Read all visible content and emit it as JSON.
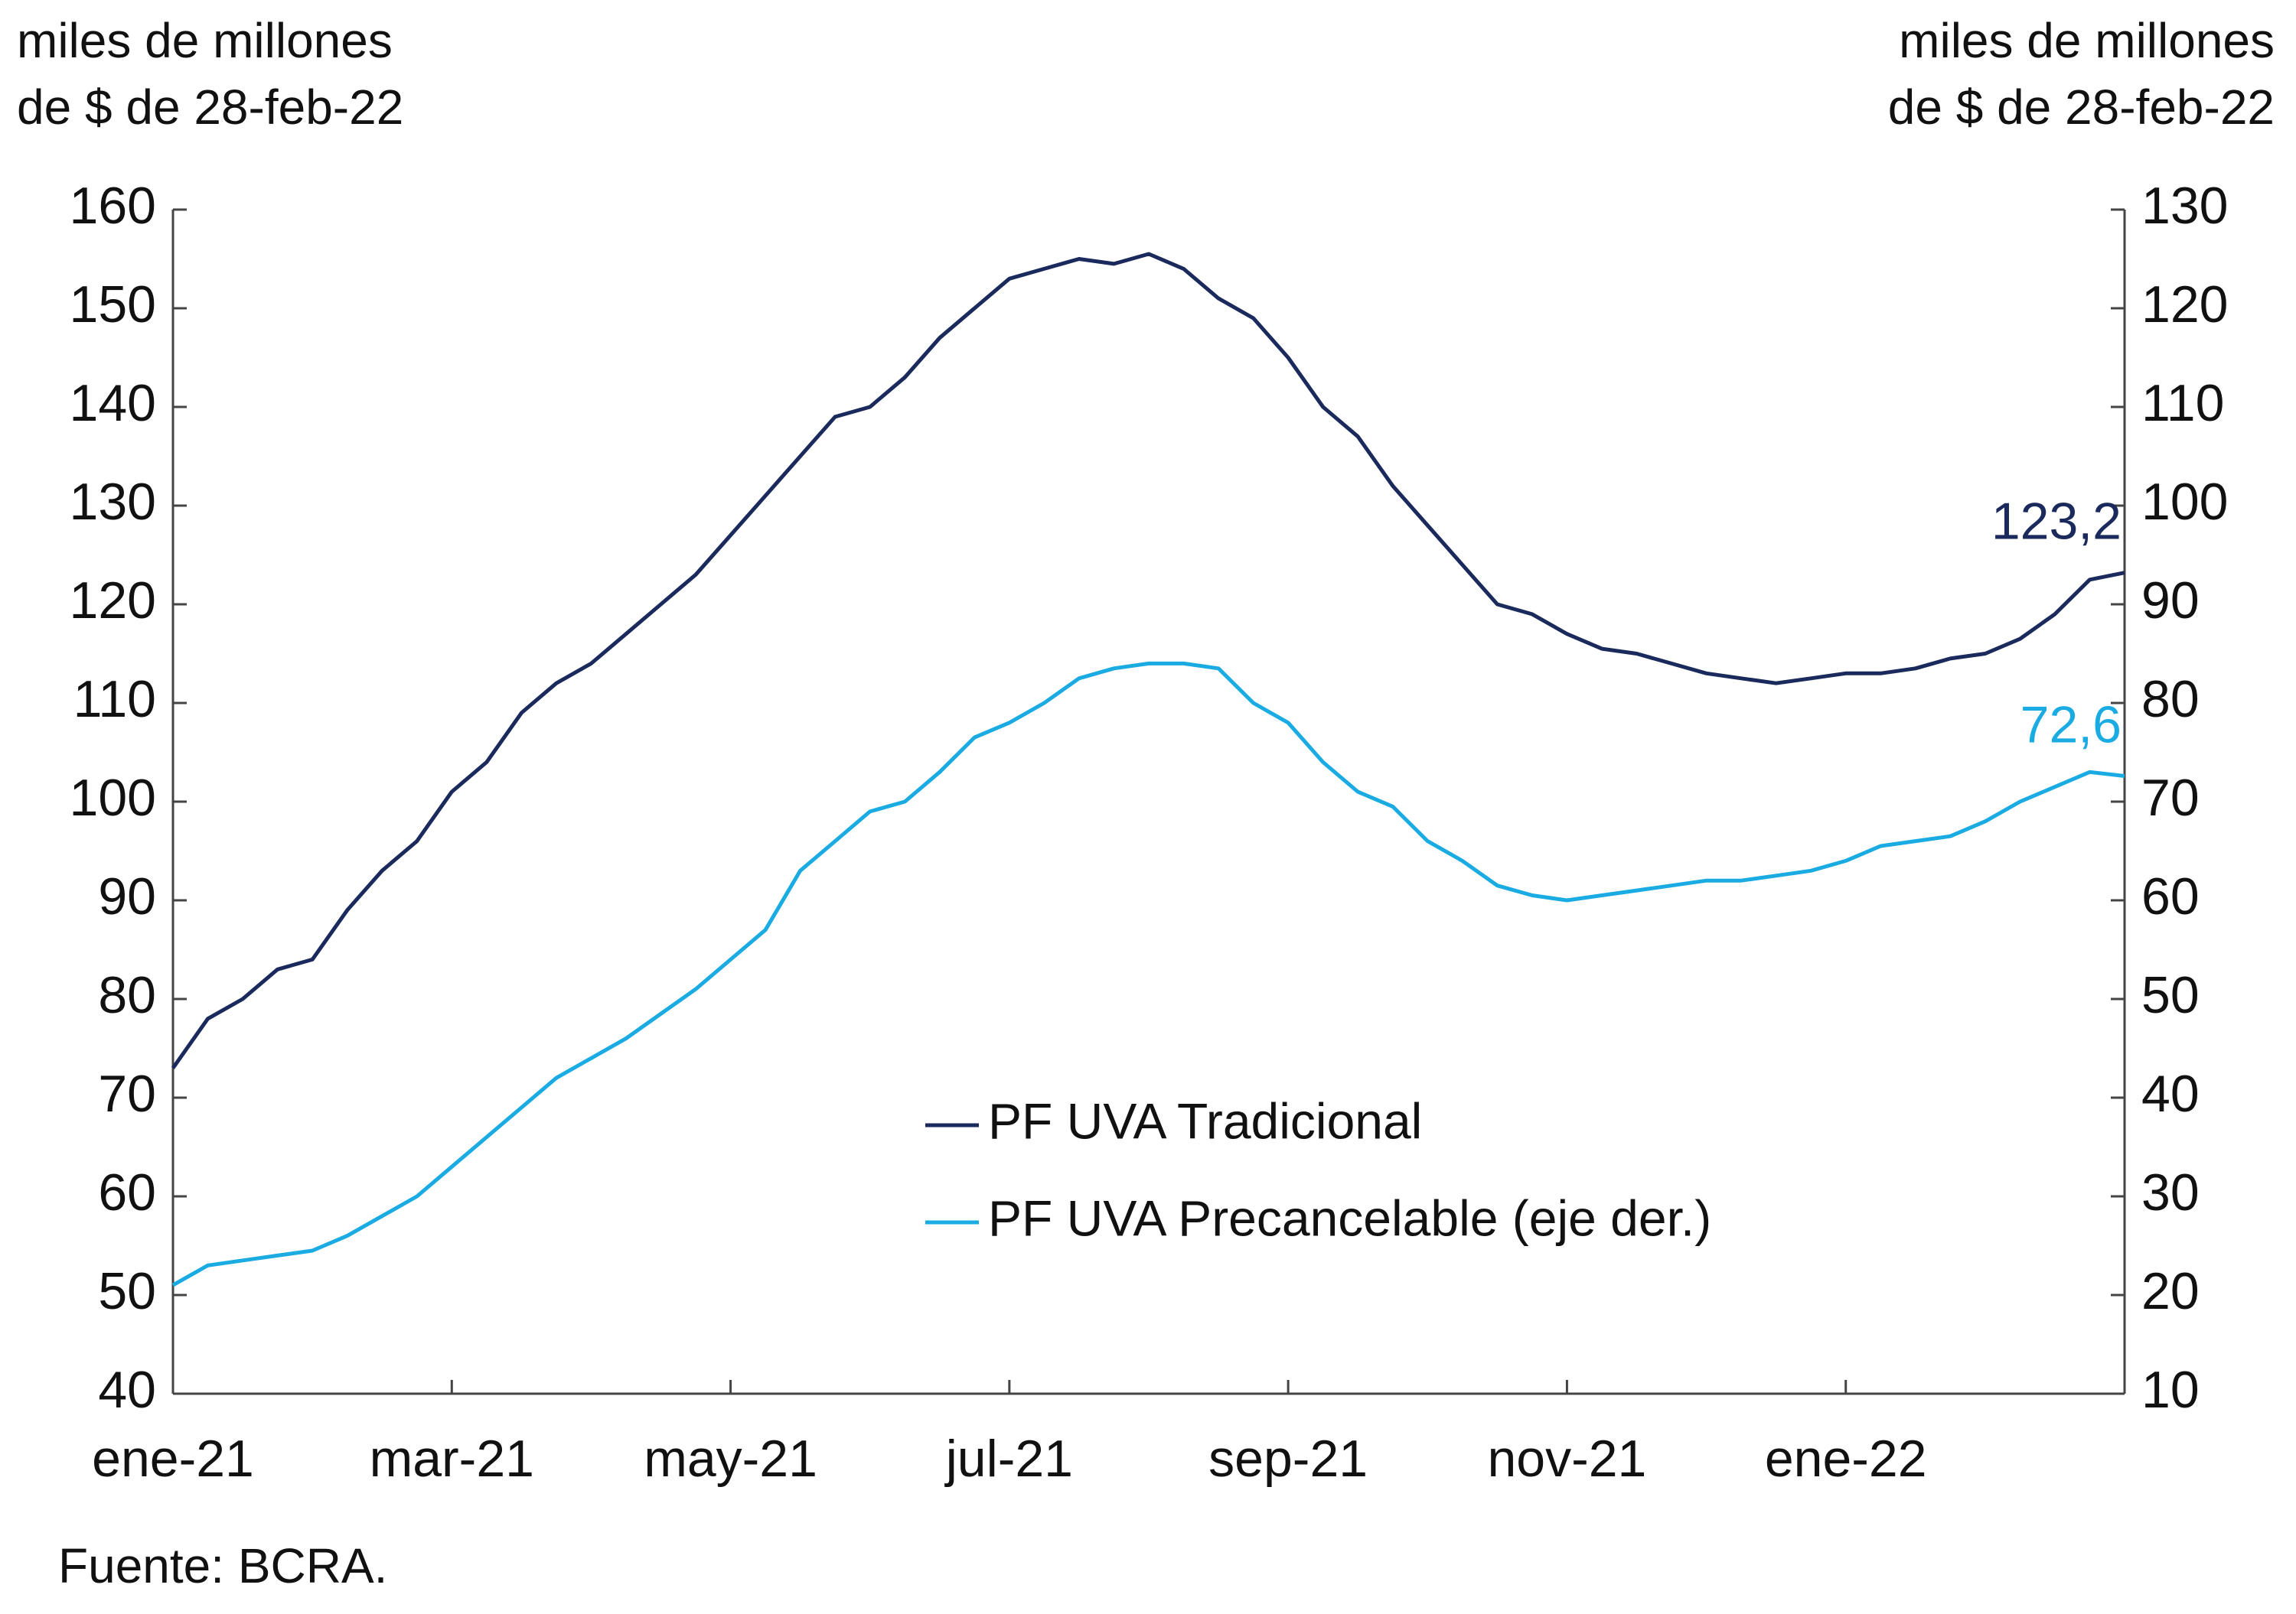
{
  "chart_data": {
    "type": "line",
    "y_label": [
      "miles de millones",
      "de $ de 28-feb-22"
    ],
    "y2_label": [
      "miles de millones",
      "de $ de 28-feb-22"
    ],
    "source": "Fuente: BCRA.",
    "categories": [
      "ene-21",
      null,
      null,
      null,
      null,
      null,
      null,
      null,
      "mar-21",
      null,
      null,
      null,
      null,
      null,
      null,
      null,
      "may-21",
      null,
      null,
      null,
      null,
      null,
      null,
      null,
      "jul-21",
      null,
      null,
      null,
      null,
      null,
      null,
      null,
      "sep-21",
      null,
      null,
      null,
      null,
      null,
      null,
      null,
      "nov-21",
      null,
      null,
      null,
      null,
      null,
      null,
      null,
      "ene-22",
      null,
      null,
      null,
      null,
      null,
      null,
      null,
      null
    ],
    "series": [
      {
        "name": "PF UVA Tradicional",
        "color": "#1b2a5c",
        "axis": "y",
        "last_label": "123,2",
        "values": [
          73,
          78,
          80,
          83,
          84,
          89,
          93,
          96,
          101,
          104,
          109,
          112,
          114,
          117,
          120,
          123,
          127,
          131,
          135,
          139,
          140,
          143,
          147,
          150,
          153,
          154,
          155,
          154.5,
          155.5,
          154,
          151,
          149,
          145,
          140,
          137,
          132,
          128,
          124,
          120,
          119,
          117,
          115.5,
          115,
          114,
          113,
          112.5,
          112,
          112.5,
          113,
          113,
          113.5,
          114.5,
          115,
          116.5,
          119,
          122.5,
          123.2
        ]
      },
      {
        "name": "PF UVA Precancelable (eje der.)",
        "color": "#1aabe3",
        "axis": "y2",
        "last_label": "72,6",
        "values": [
          21,
          23,
          23.5,
          24,
          24.5,
          26,
          28,
          30,
          33,
          36,
          39,
          42,
          44,
          46,
          48.5,
          51,
          54,
          57,
          63,
          66,
          69,
          70,
          73,
          76.5,
          78,
          80,
          82.5,
          83.5,
          84,
          84,
          83.5,
          80,
          78,
          74,
          71,
          69.5,
          66,
          64,
          61.5,
          60.5,
          60,
          60.5,
          61,
          61.5,
          62,
          62,
          62.5,
          63,
          64,
          65.5,
          66,
          66.5,
          68,
          70,
          71.5,
          73,
          72.6
        ]
      }
    ],
    "ylim": [
      40,
      160
    ],
    "yticks": [
      40,
      50,
      60,
      70,
      80,
      90,
      100,
      110,
      120,
      130,
      140,
      150,
      160
    ],
    "y2lim": [
      10,
      130
    ],
    "y2ticks": [
      10,
      20,
      30,
      40,
      50,
      60,
      70,
      80,
      90,
      100,
      110,
      120,
      130
    ],
    "grid": false,
    "legend": "lower center"
  }
}
